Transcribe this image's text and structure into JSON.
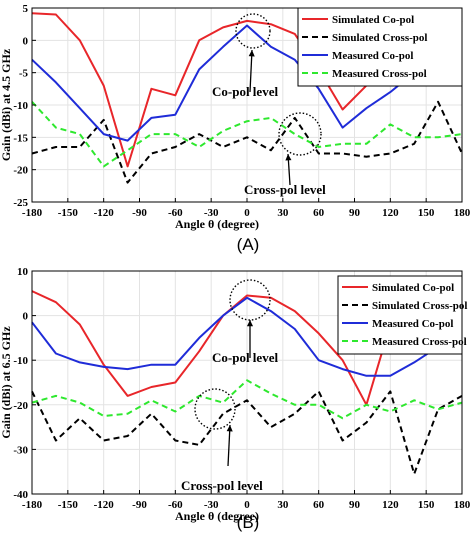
{
  "chart_data": [
    {
      "type": "line",
      "panel_label": "(A)",
      "xlabel": "Angle θ (degree)",
      "ylabel": "Gain (dBi) at 4.5 GHz",
      "xlim": [
        -180,
        180
      ],
      "ylim": [
        -25,
        5
      ],
      "xticks": [
        -180,
        -150,
        -120,
        -90,
        -60,
        -30,
        0,
        30,
        60,
        90,
        120,
        150,
        180
      ],
      "yticks": [
        5,
        0,
        -5,
        -10,
        -15,
        -20,
        -25
      ],
      "grid": true,
      "legend_position": "top-right",
      "series": [
        {
          "name": "Simulated Co-pol",
          "color": "#e8262a",
          "dash": "solid",
          "x": [
            -180,
            -160,
            -140,
            -120,
            -100,
            -80,
            -60,
            -40,
            -20,
            0,
            20,
            40,
            60,
            80,
            100,
            120,
            140,
            160,
            180
          ],
          "y": [
            4.2,
            4,
            0,
            -7,
            -19.5,
            -7.5,
            -8.5,
            0,
            2,
            3,
            2.5,
            1,
            -4.5,
            -10.7,
            -7,
            -5,
            -3,
            0,
            3
          ]
        },
        {
          "name": "Simulated Cross-pol",
          "color": "#000000",
          "dash": "dashed",
          "x": [
            -180,
            -160,
            -140,
            -120,
            -100,
            -80,
            -60,
            -40,
            -20,
            0,
            20,
            40,
            60,
            80,
            100,
            120,
            140,
            160,
            180
          ],
          "y": [
            -17.5,
            -16.5,
            -16.5,
            -12.3,
            -22,
            -17.5,
            -16.5,
            -14.5,
            -16.5,
            -15,
            -17,
            -12,
            -17.5,
            -17.5,
            -18,
            -17.5,
            -16,
            -9.5,
            -17.5
          ]
        },
        {
          "name": "Measured Co-pol",
          "color": "#1f2cd8",
          "dash": "solid",
          "x": [
            -180,
            -160,
            -140,
            -120,
            -100,
            -80,
            -60,
            -40,
            -20,
            0,
            20,
            40,
            60,
            80,
            100,
            120,
            140,
            160,
            180
          ],
          "y": [
            -3,
            -6.5,
            -10.5,
            -14.5,
            -15.5,
            -12,
            -11.5,
            -4.5,
            -1,
            2.3,
            -1,
            -3,
            -7.5,
            -13.5,
            -10.5,
            -8,
            -5,
            -2,
            -1
          ]
        },
        {
          "name": "Measured Cross-pol",
          "color": "#2ee82e",
          "dash": "dashed",
          "x": [
            -180,
            -160,
            -140,
            -120,
            -100,
            -80,
            -60,
            -40,
            -20,
            0,
            20,
            40,
            60,
            80,
            100,
            120,
            140,
            160,
            180
          ],
          "y": [
            -9.5,
            -13.5,
            -14.5,
            -19.5,
            -17,
            -14.5,
            -14.5,
            -16.5,
            -14,
            -12.5,
            -12,
            -14.5,
            -16.5,
            -16,
            -16,
            -13,
            -15,
            -15,
            -14.5
          ]
        }
      ],
      "annotations": [
        {
          "text": "Co-pol level",
          "target_x": 0,
          "target_y": 2.5
        },
        {
          "text": "Cross-pol level",
          "target_x": 40,
          "target_y": -13
        }
      ]
    },
    {
      "type": "line",
      "panel_label": "(B)",
      "xlabel": "Angle θ (degree)",
      "ylabel": "Gain (dBi) at 6.5 GHz",
      "xlim": [
        -180,
        180
      ],
      "ylim": [
        -40,
        10
      ],
      "xticks": [
        -180,
        -150,
        -120,
        -90,
        -60,
        -30,
        0,
        30,
        60,
        90,
        120,
        150,
        180
      ],
      "yticks": [
        10,
        0,
        -10,
        -20,
        -30,
        -40
      ],
      "grid": true,
      "legend_position": "top-right",
      "series": [
        {
          "name": "Simulated Co-pol",
          "color": "#e8262a",
          "dash": "solid",
          "x": [
            -180,
            -160,
            -140,
            -120,
            -100,
            -80,
            -60,
            -40,
            -20,
            0,
            20,
            40,
            60,
            80,
            100,
            120,
            140,
            160,
            180
          ],
          "y": [
            5.5,
            3,
            -2,
            -11,
            -18,
            -16,
            -15,
            -8,
            0,
            4.5,
            4,
            1,
            -4,
            -10,
            -20,
            -2,
            0,
            3,
            7
          ]
        },
        {
          "name": "Simulated Cross-pol",
          "color": "#000000",
          "dash": "dashed",
          "x": [
            -180,
            -160,
            -140,
            -120,
            -100,
            -80,
            -60,
            -40,
            -20,
            0,
            20,
            40,
            60,
            80,
            100,
            120,
            140,
            160,
            180
          ],
          "y": [
            -17,
            -28,
            -23,
            -28,
            -27,
            -22,
            -28,
            -29,
            -22,
            -19,
            -25,
            -22,
            -17,
            -28,
            -24,
            -17,
            -35.5,
            -21,
            -18
          ]
        },
        {
          "name": "Measured Co-pol",
          "color": "#1f2cd8",
          "dash": "solid",
          "x": [
            -180,
            -160,
            -140,
            -120,
            -100,
            -80,
            -60,
            -40,
            -20,
            0,
            20,
            40,
            60,
            80,
            100,
            120,
            140,
            160,
            180
          ],
          "y": [
            -1.5,
            -8.5,
            -10.5,
            -11.5,
            -12,
            -11,
            -11,
            -5,
            0,
            4,
            1,
            -3,
            -10,
            -12,
            -13.5,
            -13.5,
            -10.5,
            -7,
            -4
          ]
        },
        {
          "name": "Measured Cross-pol",
          "color": "#2ee82e",
          "dash": "dashed",
          "x": [
            -180,
            -160,
            -140,
            -120,
            -100,
            -80,
            -60,
            -40,
            -20,
            0,
            20,
            40,
            60,
            80,
            100,
            120,
            140,
            160,
            180
          ],
          "y": [
            -19.5,
            -18,
            -19.5,
            -22.5,
            -22,
            -19,
            -21.5,
            -18,
            -19.5,
            -14.5,
            -17.5,
            -20,
            -20,
            -23,
            -20,
            -21.5,
            -19,
            -21,
            -19.5
          ]
        }
      ],
      "annotations": [
        {
          "text": "Co-pol level",
          "target_x": 0,
          "target_y": 4.5
        },
        {
          "text": "Cross-pol level",
          "target_x": -25,
          "target_y": -25
        }
      ]
    }
  ]
}
